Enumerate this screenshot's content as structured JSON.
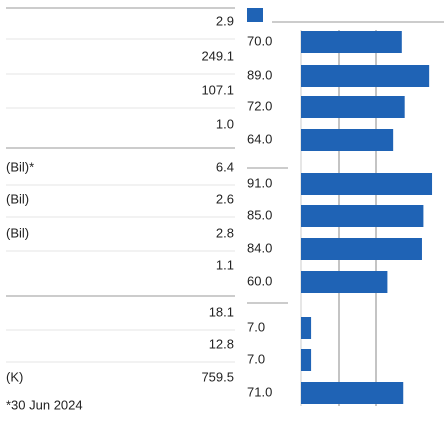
{
  "rows": [
    {
      "label": null,
      "value": "2.9"
    },
    {
      "label": null,
      "value": "249.1"
    },
    {
      "label": null,
      "value": "107.1"
    },
    {
      "label": null,
      "value": "1.0"
    },
    {
      "label": "(Bil)*",
      "value": "6.4"
    },
    {
      "label": "(Bil)",
      "value": "2.6"
    },
    {
      "label": "(Bil)",
      "value": "2.8"
    },
    {
      "label": null,
      "value": "1.1"
    },
    {
      "label": null,
      "value": "18.1"
    },
    {
      "label": null,
      "value": "12.8"
    },
    {
      "label": "(K)",
      "value": "759.5"
    }
  ],
  "ranks": {
    "xlim": [
      0,
      100
    ],
    "color": "#1f63b5",
    "values": [
      70,
      89,
      72,
      64,
      91,
      85,
      84,
      60,
      7,
      7,
      71
    ],
    "value_labels": [
      "70.0",
      "89.0",
      "72.0",
      "64.0",
      "91.0",
      "85.0",
      "84.0",
      "60.0",
      "7.0",
      "7.0",
      "71.0"
    ]
  },
  "footnote": "*30 Jun 2024"
}
